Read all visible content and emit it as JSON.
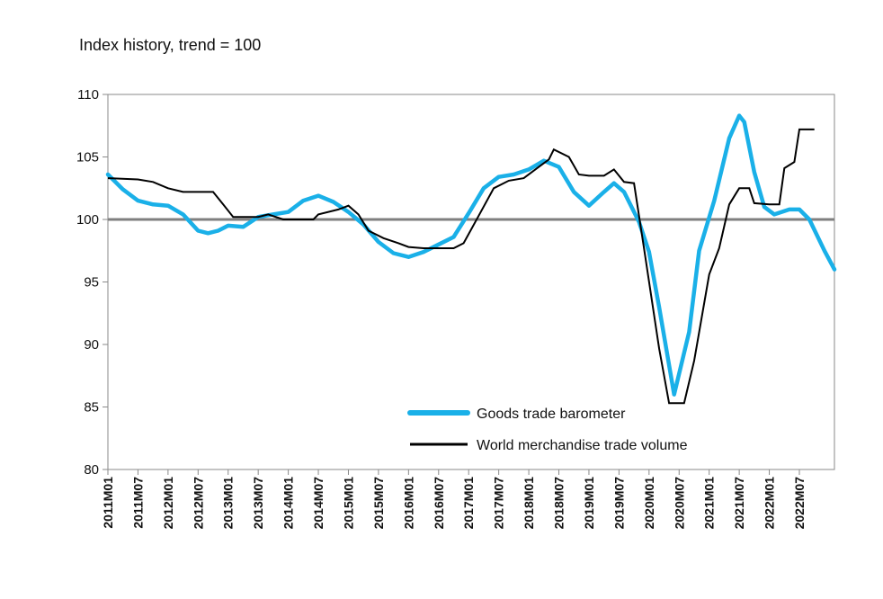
{
  "chart_data": {
    "type": "line",
    "title": "Index history, trend = 100",
    "xlabel": "",
    "ylabel": "",
    "ylim": [
      80,
      110
    ],
    "yticks": [
      80,
      85,
      90,
      95,
      100,
      105,
      110
    ],
    "reference_line": 100,
    "x_start": "2011M01",
    "x_ticks": [
      "2011M01",
      "2011M07",
      "2012M01",
      "2012M07",
      "2013M01",
      "2013M07",
      "2014M01",
      "2014M07",
      "2015M01",
      "2015M07",
      "2016M01",
      "2016M07",
      "2017M01",
      "2017M07",
      "2018M01",
      "2018M07",
      "2019M01",
      "2019M07",
      "2020M01",
      "2020M07",
      "2021M01",
      "2021M07",
      "2022M01",
      "2022M07"
    ],
    "legend_position": "bottom-right",
    "grid": false,
    "series": [
      {
        "name": "Goods trade barometer",
        "color": "#1ab0e8",
        "points": [
          [
            "2011M01",
            103.6
          ],
          [
            "2011M04",
            102.4
          ],
          [
            "2011M07",
            101.5
          ],
          [
            "2011M10",
            101.2
          ],
          [
            "2012M01",
            101.1
          ],
          [
            "2012M04",
            100.4
          ],
          [
            "2012M07",
            99.1
          ],
          [
            "2012M09",
            98.9
          ],
          [
            "2012M11",
            99.1
          ],
          [
            "2013M01",
            99.5
          ],
          [
            "2013M04",
            99.4
          ],
          [
            "2013M07",
            100.2
          ],
          [
            "2013M10",
            100.4
          ],
          [
            "2014M01",
            100.6
          ],
          [
            "2014M04",
            101.5
          ],
          [
            "2014M07",
            101.9
          ],
          [
            "2014M10",
            101.4
          ],
          [
            "2015M01",
            100.6
          ],
          [
            "2015M04",
            99.6
          ],
          [
            "2015M07",
            98.2
          ],
          [
            "2015M10",
            97.3
          ],
          [
            "2016M01",
            97.0
          ],
          [
            "2016M04",
            97.4
          ],
          [
            "2016M07",
            98.0
          ],
          [
            "2016M10",
            98.6
          ],
          [
            "2017M01",
            100.5
          ],
          [
            "2017M04",
            102.5
          ],
          [
            "2017M07",
            103.4
          ],
          [
            "2017M10",
            103.6
          ],
          [
            "2018M01",
            104.0
          ],
          [
            "2018M04",
            104.7
          ],
          [
            "2018M07",
            104.2
          ],
          [
            "2018M10",
            102.2
          ],
          [
            "2019M01",
            101.1
          ],
          [
            "2019M04",
            102.2
          ],
          [
            "2019M06",
            102.9
          ],
          [
            "2019M08",
            102.2
          ],
          [
            "2019M11",
            99.8
          ],
          [
            "2020M01",
            97.4
          ],
          [
            "2020M03",
            93.0
          ],
          [
            "2020M06",
            86.0
          ],
          [
            "2020M09",
            91.0
          ],
          [
            "2020M11",
            97.5
          ],
          [
            "2021M02",
            101.5
          ],
          [
            "2021M05",
            106.5
          ],
          [
            "2021M07",
            108.3
          ],
          [
            "2021M08",
            107.8
          ],
          [
            "2021M10",
            103.8
          ],
          [
            "2021M12",
            101.0
          ],
          [
            "2022M02",
            100.4
          ],
          [
            "2022M05",
            100.8
          ],
          [
            "2022M07",
            100.8
          ],
          [
            "2022M09",
            100.0
          ],
          [
            "2022M12",
            97.5
          ],
          [
            "2023M02",
            96.0
          ]
        ]
      },
      {
        "name": "World merchandise trade volume",
        "color": "#000000",
        "points": [
          [
            "2011M01",
            103.3
          ],
          [
            "2011M07",
            103.2
          ],
          [
            "2011M10",
            103.0
          ],
          [
            "2012M01",
            102.5
          ],
          [
            "2012M04",
            102.2
          ],
          [
            "2012M10",
            102.2
          ],
          [
            "2012M12",
            101.2
          ],
          [
            "2013M02",
            100.2
          ],
          [
            "2013M07",
            100.2
          ],
          [
            "2013M09",
            100.4
          ],
          [
            "2013M12",
            100.0
          ],
          [
            "2014M06",
            100.0
          ],
          [
            "2014M07",
            100.4
          ],
          [
            "2014M11",
            100.8
          ],
          [
            "2015M01",
            101.1
          ],
          [
            "2015M03",
            100.4
          ],
          [
            "2015M05",
            99.1
          ],
          [
            "2015M08",
            98.5
          ],
          [
            "2015M11",
            98.1
          ],
          [
            "2016M01",
            97.8
          ],
          [
            "2016M04",
            97.7
          ],
          [
            "2016M10",
            97.7
          ],
          [
            "2016M12",
            98.1
          ],
          [
            "2017M03",
            100.3
          ],
          [
            "2017M06",
            102.5
          ],
          [
            "2017M09",
            103.1
          ],
          [
            "2017M12",
            103.3
          ],
          [
            "2018M03",
            104.2
          ],
          [
            "2018M05",
            104.8
          ],
          [
            "2018M06",
            105.6
          ],
          [
            "2018M09",
            105.0
          ],
          [
            "2018M11",
            103.6
          ],
          [
            "2019M01",
            103.5
          ],
          [
            "2019M04",
            103.5
          ],
          [
            "2019M06",
            104.0
          ],
          [
            "2019M08",
            103.0
          ],
          [
            "2019M10",
            102.9
          ],
          [
            "2019M12",
            97.7
          ],
          [
            "2020M03",
            89.7
          ],
          [
            "2020M05",
            85.3
          ],
          [
            "2020M08",
            85.3
          ],
          [
            "2020M10",
            88.7
          ],
          [
            "2021M01",
            95.6
          ],
          [
            "2021M03",
            97.7
          ],
          [
            "2021M05",
            101.2
          ],
          [
            "2021M07",
            102.5
          ],
          [
            "2021M09",
            102.5
          ],
          [
            "2021M10",
            101.3
          ],
          [
            "2022M01",
            101.2
          ],
          [
            "2022M03",
            101.2
          ],
          [
            "2022M04",
            104.1
          ],
          [
            "2022M06",
            104.6
          ],
          [
            "2022M07",
            107.2
          ],
          [
            "2022M10",
            107.2
          ]
        ]
      }
    ]
  }
}
